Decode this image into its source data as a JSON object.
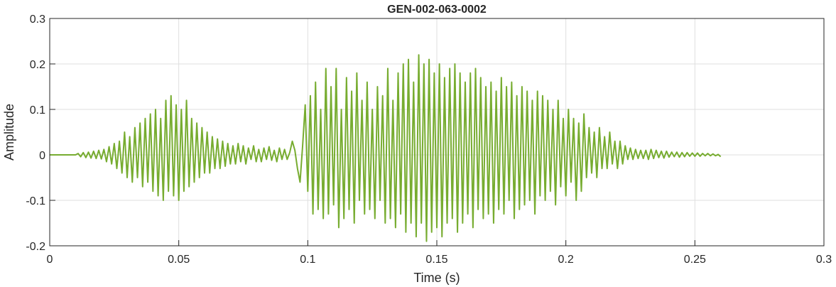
{
  "chart_data": {
    "type": "line",
    "title": "GEN-002-063-0002",
    "xlabel": "Time (s)",
    "ylabel": "Amplitude",
    "xlim": [
      0,
      0.3
    ],
    "ylim": [
      -0.2,
      0.3
    ],
    "xticks": [
      0,
      0.05,
      0.1,
      0.15,
      0.2,
      0.25,
      0.3
    ],
    "yticks": [
      -0.2,
      -0.1,
      0,
      0.1,
      0.2,
      0.3
    ],
    "grid": true,
    "series": [
      {
        "color": "#77ac30",
        "x": [
          0,
          0.001,
          0.002,
          0.003,
          0.004,
          0.005,
          0.006,
          0.007,
          0.008,
          0.009,
          0.01,
          0.011,
          0.012,
          0.013,
          0.014,
          0.015,
          0.016,
          0.017,
          0.018,
          0.019,
          0.02,
          0.021,
          0.022,
          0.023,
          0.024,
          0.025,
          0.026,
          0.027,
          0.028,
          0.029,
          0.03,
          0.031,
          0.032,
          0.033,
          0.034,
          0.035,
          0.036,
          0.037,
          0.038,
          0.039,
          0.04,
          0.041,
          0.042,
          0.043,
          0.044,
          0.045,
          0.046,
          0.047,
          0.048,
          0.049,
          0.05,
          0.051,
          0.052,
          0.053,
          0.054,
          0.055,
          0.056,
          0.057,
          0.058,
          0.059,
          0.06,
          0.061,
          0.062,
          0.063,
          0.064,
          0.065,
          0.066,
          0.067,
          0.068,
          0.069,
          0.07,
          0.071,
          0.072,
          0.073,
          0.074,
          0.075,
          0.076,
          0.077,
          0.078,
          0.079,
          0.08,
          0.081,
          0.082,
          0.083,
          0.084,
          0.085,
          0.086,
          0.087,
          0.088,
          0.089,
          0.09,
          0.091,
          0.092,
          0.093,
          0.094,
          0.095,
          0.096,
          0.097,
          0.098,
          0.099,
          0.1,
          0.101,
          0.102,
          0.103,
          0.104,
          0.105,
          0.106,
          0.107,
          0.108,
          0.109,
          0.11,
          0.111,
          0.112,
          0.113,
          0.114,
          0.115,
          0.116,
          0.117,
          0.118,
          0.119,
          0.12,
          0.121,
          0.122,
          0.123,
          0.124,
          0.125,
          0.126,
          0.127,
          0.128,
          0.129,
          0.13,
          0.131,
          0.132,
          0.133,
          0.134,
          0.135,
          0.136,
          0.137,
          0.138,
          0.139,
          0.14,
          0.141,
          0.142,
          0.143,
          0.144,
          0.145,
          0.146,
          0.147,
          0.148,
          0.149,
          0.15,
          0.151,
          0.152,
          0.153,
          0.154,
          0.155,
          0.156,
          0.157,
          0.158,
          0.159,
          0.16,
          0.161,
          0.162,
          0.163,
          0.164,
          0.165,
          0.166,
          0.167,
          0.168,
          0.169,
          0.17,
          0.171,
          0.172,
          0.173,
          0.174,
          0.175,
          0.176,
          0.177,
          0.178,
          0.179,
          0.18,
          0.181,
          0.182,
          0.183,
          0.184,
          0.185,
          0.186,
          0.187,
          0.188,
          0.189,
          0.19,
          0.191,
          0.192,
          0.193,
          0.194,
          0.195,
          0.196,
          0.197,
          0.198,
          0.199,
          0.2,
          0.201,
          0.202,
          0.203,
          0.204,
          0.205,
          0.206,
          0.207,
          0.208,
          0.209,
          0.21,
          0.211,
          0.212,
          0.213,
          0.214,
          0.215,
          0.216,
          0.217,
          0.218,
          0.219,
          0.22,
          0.221,
          0.222,
          0.223,
          0.224,
          0.225,
          0.226,
          0.227,
          0.228,
          0.229,
          0.23,
          0.231,
          0.232,
          0.233,
          0.234,
          0.235,
          0.236,
          0.237,
          0.238,
          0.239,
          0.24,
          0.241,
          0.242,
          0.243,
          0.244,
          0.245,
          0.246,
          0.247,
          0.248,
          0.249,
          0.25,
          0.251,
          0.252,
          0.253,
          0.254,
          0.255,
          0.256,
          0.257,
          0.258,
          0.259,
          0.26
        ],
        "values": [
          0,
          0,
          0,
          0,
          0,
          0,
          0,
          0,
          0,
          0,
          0,
          0.003,
          -0.004,
          0.005,
          -0.006,
          0.006,
          -0.007,
          0.008,
          -0.008,
          0.01,
          -0.009,
          0.012,
          -0.015,
          0.018,
          -0.02,
          0.025,
          -0.03,
          0.03,
          -0.04,
          0.05,
          -0.05,
          0.04,
          -0.06,
          0.06,
          -0.05,
          0.07,
          -0.07,
          0.08,
          -0.06,
          0.09,
          -0.08,
          0.1,
          -0.09,
          0.08,
          -0.1,
          0.12,
          -0.08,
          0.13,
          -0.09,
          0.11,
          -0.1,
          0.1,
          -0.08,
          0.12,
          -0.07,
          0.08,
          -0.06,
          0.07,
          -0.05,
          0.06,
          -0.04,
          0.05,
          -0.04,
          0.04,
          -0.03,
          0.035,
          -0.03,
          0.03,
          -0.025,
          0.025,
          -0.02,
          0.02,
          -0.02,
          0.025,
          -0.015,
          0.02,
          -0.02,
          0.015,
          -0.01,
          0.02,
          -0.015,
          0.012,
          -0.015,
          0.015,
          -0.01,
          0.018,
          -0.012,
          0.01,
          -0.015,
          0.015,
          -0.01,
          0.012,
          -0.01,
          0.005,
          0.03,
          0.01,
          -0.03,
          -0.06,
          0.02,
          0.11,
          -0.08,
          0.13,
          -0.13,
          0.16,
          -0.12,
          0.1,
          -0.14,
          0.19,
          -0.13,
          0.15,
          -0.11,
          0.19,
          -0.16,
          0.1,
          -0.14,
          0.17,
          -0.12,
          0.14,
          -0.15,
          0.18,
          -0.1,
          0.12,
          -0.13,
          0.16,
          -0.12,
          0.1,
          -0.14,
          0.15,
          -0.1,
          0.13,
          -0.15,
          0.19,
          -0.14,
          0.12,
          -0.16,
          0.18,
          -0.13,
          0.2,
          -0.17,
          0.21,
          -0.15,
          0.16,
          -0.18,
          0.22,
          -0.15,
          0.2,
          -0.19,
          0.21,
          -0.17,
          0.18,
          -0.16,
          0.2,
          -0.18,
          0.17,
          -0.15,
          0.19,
          -0.14,
          0.2,
          -0.17,
          0.18,
          -0.15,
          0.16,
          -0.13,
          0.18,
          -0.16,
          0.19,
          -0.12,
          0.17,
          -0.14,
          0.15,
          -0.13,
          0.16,
          -0.15,
          0.14,
          -0.12,
          0.17,
          -0.13,
          0.15,
          -0.1,
          0.16,
          -0.14,
          0.13,
          -0.12,
          0.15,
          -0.11,
          0.14,
          -0.1,
          0.12,
          -0.13,
          0.14,
          -0.09,
          0.13,
          -0.1,
          0.12,
          -0.08,
          0.1,
          -0.11,
          0.12,
          -0.07,
          0.08,
          -0.09,
          0.1,
          -0.06,
          0.08,
          -0.1,
          0.07,
          -0.08,
          0.09,
          -0.05,
          0.06,
          -0.04,
          0.05,
          -0.05,
          0.06,
          -0.03,
          0.04,
          -0.03,
          0.05,
          -0.02,
          0.03,
          -0.03,
          0.03,
          -0.02,
          0.02,
          -0.01,
          0.015,
          -0.01,
          0.012,
          -0.008,
          0.01,
          -0.008,
          0.01,
          -0.01,
          0.012,
          -0.008,
          0.01,
          -0.006,
          0.008,
          -0.007,
          0.008,
          -0.005,
          0.006,
          -0.004,
          0.006,
          -0.005,
          0.005,
          -0.004,
          0.005,
          -0.003,
          0.004,
          -0.003,
          0.004,
          -0.003,
          0.003,
          -0.002,
          0.003,
          -0.002,
          0.002,
          -0.002,
          0.001,
          -0.004
        ]
      }
    ]
  }
}
